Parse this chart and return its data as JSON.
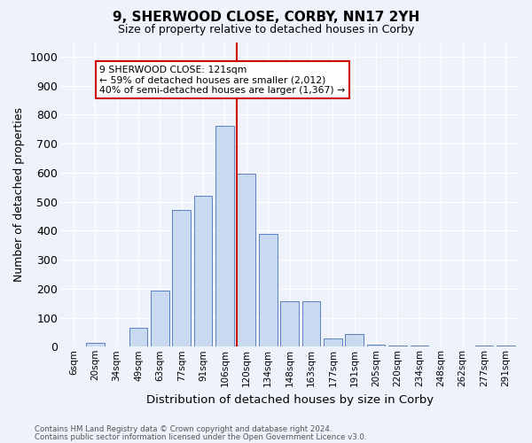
{
  "title": "9, SHERWOOD CLOSE, CORBY, NN17 2YH",
  "subtitle": "Size of property relative to detached houses in Corby",
  "xlabel": "Distribution of detached houses by size in Corby",
  "ylabel": "Number of detached properties",
  "categories": [
    "6sqm",
    "20sqm",
    "34sqm",
    "49sqm",
    "63sqm",
    "77sqm",
    "91sqm",
    "106sqm",
    "120sqm",
    "134sqm",
    "148sqm",
    "163sqm",
    "177sqm",
    "191sqm",
    "205sqm",
    "220sqm",
    "234sqm",
    "248sqm",
    "262sqm",
    "277sqm",
    "291sqm"
  ],
  "values": [
    0,
    13,
    0,
    65,
    193,
    470,
    520,
    760,
    595,
    390,
    157,
    157,
    27,
    44,
    7,
    5,
    5,
    0,
    0,
    5,
    5
  ],
  "bar_color": "#c9d9f0",
  "bar_edge_color": "#5a7fc0",
  "vline_color": "#cc0000",
  "annotation_text": "9 SHERWOOD CLOSE: 121sqm\n← 59% of detached houses are smaller (2,012)\n40% of semi-detached houses are larger (1,367) →",
  "annotation_box_color": "#cc0000",
  "annotation_box_fill": "#ffffff",
  "ylim": [
    0,
    1050
  ],
  "yticks": [
    0,
    100,
    200,
    300,
    400,
    500,
    600,
    700,
    800,
    900,
    1000
  ],
  "footer1": "Contains HM Land Registry data © Crown copyright and database right 2024.",
  "footer2": "Contains public sector information licensed under the Open Government Licence v3.0.",
  "background_color": "#eef2fa",
  "plot_bg_color": "#eef2fa",
  "grid_color": "#ffffff"
}
